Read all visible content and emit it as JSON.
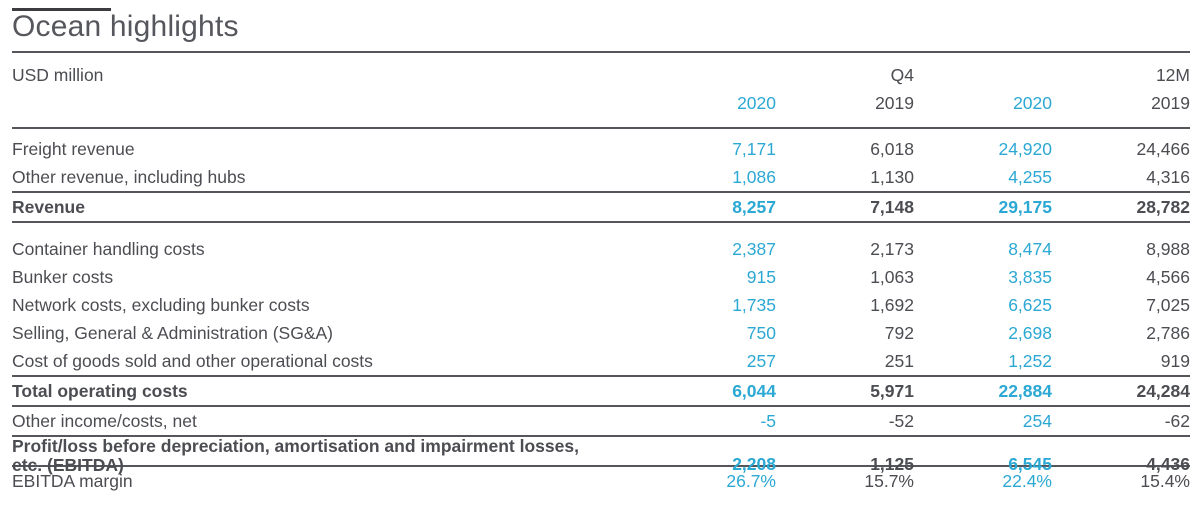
{
  "title": "Ocean highlights",
  "colors": {
    "accent": "#2BA8D3",
    "text": "#4C4D52",
    "rule": "#55565B"
  },
  "table": {
    "unit_label": "USD million",
    "group_headers": {
      "q4": "Q4",
      "twelve_m": "12M"
    },
    "year_headers": [
      "2020",
      "2019",
      "2020",
      "2019"
    ],
    "rows": [
      {
        "label": "Freight revenue",
        "values": [
          "7,171",
          "6,018",
          "24,920",
          "24,466"
        ]
      },
      {
        "label": "Other revenue, including hubs",
        "values": [
          "1,086",
          "1,130",
          "4,255",
          "4,316"
        ]
      },
      {
        "label": "Revenue",
        "values": [
          "8,257",
          "7,148",
          "29,175",
          "28,782"
        ],
        "bold": true,
        "border_top": true,
        "border_bottom": true
      },
      {
        "label": "Container handling costs",
        "values": [
          "2,387",
          "2,173",
          "8,474",
          "8,988"
        ],
        "spacer_before": true
      },
      {
        "label": "Bunker costs",
        "values": [
          "915",
          "1,063",
          "3,835",
          "4,566"
        ]
      },
      {
        "label": "Network costs, excluding bunker costs",
        "values": [
          "1,735",
          "1,692",
          "6,625",
          "7,025"
        ]
      },
      {
        "label": "Selling, General & Administration (SG&A)",
        "values": [
          "750",
          "792",
          "2,698",
          "2,786"
        ]
      },
      {
        "label": "Cost of goods sold and other operational costs",
        "values": [
          "257",
          "251",
          "1,252",
          "919"
        ]
      },
      {
        "label": "Total operating costs",
        "values": [
          "6,044",
          "5,971",
          "22,884",
          "24,284"
        ],
        "bold": true,
        "border_top": true,
        "border_bottom": true
      },
      {
        "label": "Other income/costs, net",
        "values": [
          "-5",
          "-52",
          "254",
          "-62"
        ],
        "border_bottom": true
      },
      {
        "label": "Profit/loss before depreciation, amortisation and impairment losses,\netc. (EBITDA)",
        "values": [
          "2,208",
          "1,125",
          "6,545",
          "4,436"
        ],
        "bold": true,
        "border_bottom": true,
        "two_line": true
      },
      {
        "label": "EBITDA margin",
        "values": [
          "26.7%",
          "15.7%",
          "22.4%",
          "15.4%"
        ]
      }
    ]
  }
}
